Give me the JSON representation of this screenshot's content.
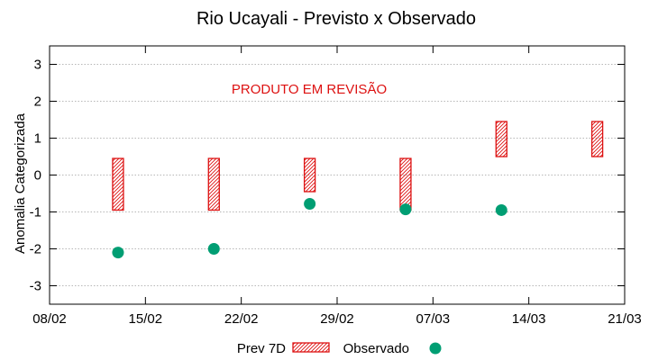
{
  "chart_data": {
    "type": "range-bar+scatter",
    "title": "Rio Ucayali - Previsto x Observado",
    "ylabel": "Anomalia Categorizada",
    "xlabel": "",
    "annotation": "PRODUTO EM REVISÃO",
    "xlim": [
      "2024-02-08",
      "2024-03-21"
    ],
    "ylim": [
      -3.5,
      3.5
    ],
    "x_tick_labels": [
      "08/02",
      "15/02",
      "22/02",
      "29/02",
      "07/03",
      "14/03",
      "21/03"
    ],
    "y_tick_labels": [
      "3",
      "2",
      "1",
      "0",
      "-1",
      "-2",
      "-3"
    ],
    "y_ticks": [
      3,
      2,
      1,
      0,
      -1,
      -2,
      -3
    ],
    "grid": "horizontal-dotted",
    "legend_placement": "bottom-center",
    "series": [
      {
        "name": "Prev 7D",
        "kind": "range-bar",
        "color": "#dd1111",
        "points": [
          {
            "date": "2024-02-13",
            "low": -0.95,
            "high": 0.45
          },
          {
            "date": "2024-02-20",
            "low": -0.95,
            "high": 0.45
          },
          {
            "date": "2024-02-27",
            "low": -0.45,
            "high": 0.45
          },
          {
            "date": "2024-03-05",
            "low": -0.95,
            "high": 0.45
          },
          {
            "date": "2024-03-12",
            "low": 0.5,
            "high": 1.45
          },
          {
            "date": "2024-03-19",
            "low": 0.5,
            "high": 1.45
          }
        ]
      },
      {
        "name": "Observado",
        "kind": "scatter",
        "color": "#009e73",
        "points": [
          {
            "date": "2024-02-13",
            "value": -2.1
          },
          {
            "date": "2024-02-20",
            "value": -2.0
          },
          {
            "date": "2024-02-27",
            "value": -0.78
          },
          {
            "date": "2024-03-05",
            "value": -0.93
          },
          {
            "date": "2024-03-12",
            "value": -0.95
          }
        ]
      }
    ]
  }
}
